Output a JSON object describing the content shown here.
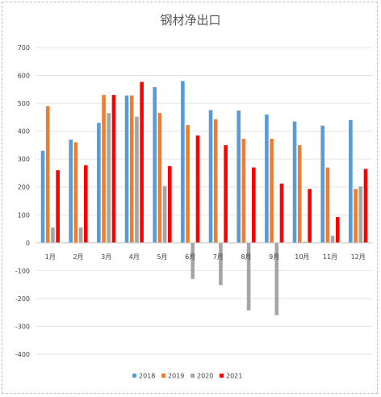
{
  "chart_data": {
    "type": "bar",
    "title": "钢材净出口",
    "xlabel": "",
    "ylabel": "",
    "categories": [
      "1月",
      "2月",
      "3月",
      "4月",
      "5月",
      "6月",
      "7月",
      "8月",
      "9月",
      "10月",
      "11月",
      "12月"
    ],
    "ylim": [
      -400,
      700
    ],
    "yticks": [
      -400,
      -300,
      -200,
      -100,
      0,
      100,
      200,
      300,
      400,
      500,
      600,
      700
    ],
    "grid": true,
    "legend_position": "bottom",
    "series": [
      {
        "name": "2018",
        "color": "#5b9bd5",
        "values": [
          330,
          370,
          430,
          528,
          558,
          580,
          476,
          474,
          460,
          435,
          420,
          440
        ]
      },
      {
        "name": "2019",
        "color": "#ed7d31",
        "values": [
          490,
          360,
          530,
          528,
          465,
          422,
          443,
          373,
          373,
          350,
          270,
          193
        ]
      },
      {
        "name": "2020",
        "color": "#a5a5a5",
        "values": [
          55,
          55,
          465,
          452,
          203,
          -130,
          -152,
          -243,
          -260,
          3,
          25,
          202
        ]
      },
      {
        "name": "2021",
        "color": "#ff0000",
        "values": [
          260,
          278,
          530,
          577,
          275,
          385,
          350,
          270,
          212,
          193,
          92,
          265
        ]
      }
    ]
  }
}
